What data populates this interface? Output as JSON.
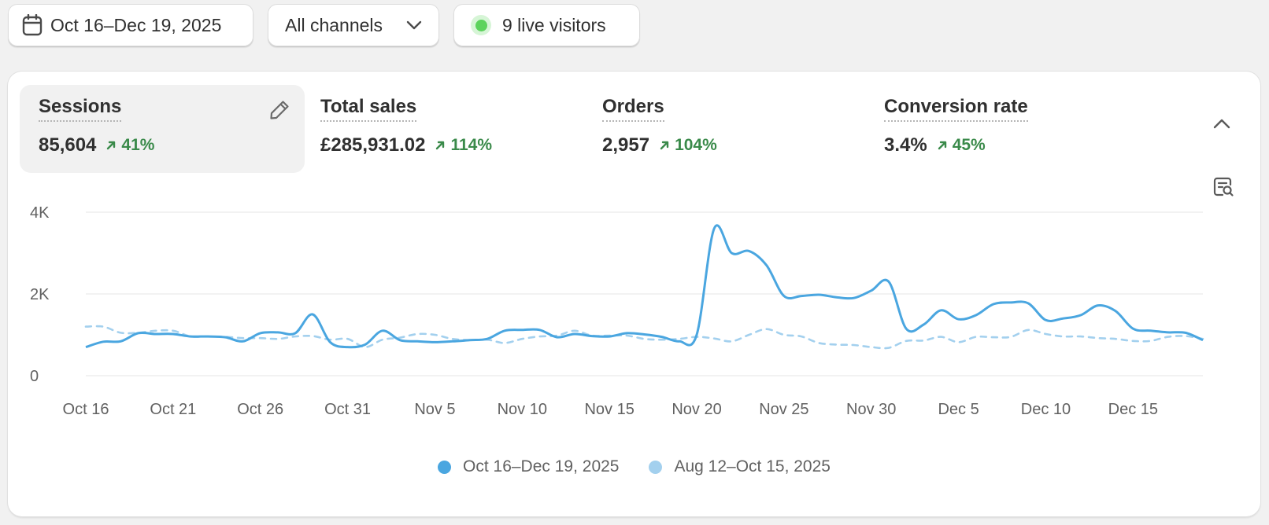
{
  "toolbar": {
    "date_range": "Oct 16–Dec 19, 2025",
    "channels": "All channels",
    "live_visitors": "9 live visitors"
  },
  "metrics": [
    {
      "title": "Sessions",
      "value": "85,604",
      "change": "41%"
    },
    {
      "title": "Total sales",
      "value": "£285,931.02",
      "change": "114%"
    },
    {
      "title": "Orders",
      "value": "2,957",
      "change": "104%"
    },
    {
      "title": "Conversion rate",
      "value": "3.4%",
      "change": "45%"
    }
  ],
  "icons": {
    "date": "calendar-icon",
    "channels": "chevron-down-icon",
    "edit": "pencil-icon",
    "collapse": "chevron-up-icon",
    "chart_tool": "chart-search-icon",
    "trend": "arrow-up-right-icon"
  },
  "colors": {
    "current_series": "#4aa6e0",
    "previous_series": "#a3d0ee",
    "positive_change": "#3a8a4a",
    "live_dot": "#5dd35d"
  },
  "chart_data": {
    "type": "line",
    "ylim": [
      0,
      4000
    ],
    "yticks": [
      {
        "value": 0,
        "label": "0"
      },
      {
        "value": 2000,
        "label": "2K"
      },
      {
        "value": 4000,
        "label": "4K"
      }
    ],
    "xticks": [
      {
        "index": 0,
        "label": "Oct 16"
      },
      {
        "index": 5,
        "label": "Oct 21"
      },
      {
        "index": 10,
        "label": "Oct 26"
      },
      {
        "index": 15,
        "label": "Oct 31"
      },
      {
        "index": 20,
        "label": "Nov 5"
      },
      {
        "index": 25,
        "label": "Nov 10"
      },
      {
        "index": 30,
        "label": "Nov 15"
      },
      {
        "index": 35,
        "label": "Nov 20"
      },
      {
        "index": 40,
        "label": "Nov 25"
      },
      {
        "index": 45,
        "label": "Nov 30"
      },
      {
        "index": 50,
        "label": "Dec 5"
      },
      {
        "index": 55,
        "label": "Dec 10"
      },
      {
        "index": 60,
        "label": "Dec 15"
      }
    ],
    "grid": true,
    "legend_position": "bottom-center",
    "series": [
      {
        "name": "Oct 16–Dec 19, 2025",
        "style": "solid",
        "values": [
          700,
          830,
          840,
          1040,
          1020,
          1020,
          960,
          960,
          940,
          840,
          1040,
          1060,
          1040,
          1500,
          820,
          700,
          760,
          1100,
          870,
          840,
          820,
          840,
          870,
          900,
          1100,
          1120,
          1120,
          940,
          1020,
          970,
          960,
          1040,
          1010,
          950,
          840,
          1000,
          3600,
          3000,
          3050,
          2700,
          1950,
          1950,
          1980,
          1920,
          1900,
          2080,
          2300,
          1150,
          1250,
          1600,
          1380,
          1480,
          1750,
          1790,
          1770,
          1360,
          1400,
          1480,
          1720,
          1580,
          1150,
          1100,
          1060,
          1050,
          870
        ]
      },
      {
        "name": "Aug 12–Oct 15, 2025",
        "style": "dashed",
        "values": [
          1200,
          1200,
          1050,
          1050,
          1100,
          1100,
          960,
          960,
          950,
          920,
          920,
          900,
          960,
          970,
          880,
          900,
          700,
          880,
          930,
          1020,
          1000,
          900,
          870,
          880,
          800,
          900,
          960,
          980,
          1100,
          980,
          980,
          980,
          900,
          880,
          900,
          950,
          910,
          840,
          1000,
          1140,
          1000,
          960,
          800,
          760,
          750,
          700,
          680,
          850,
          860,
          950,
          820,
          950,
          940,
          950,
          1120,
          1020,
          960,
          960,
          920,
          900,
          850,
          850,
          950,
          970,
          900
        ]
      }
    ]
  }
}
